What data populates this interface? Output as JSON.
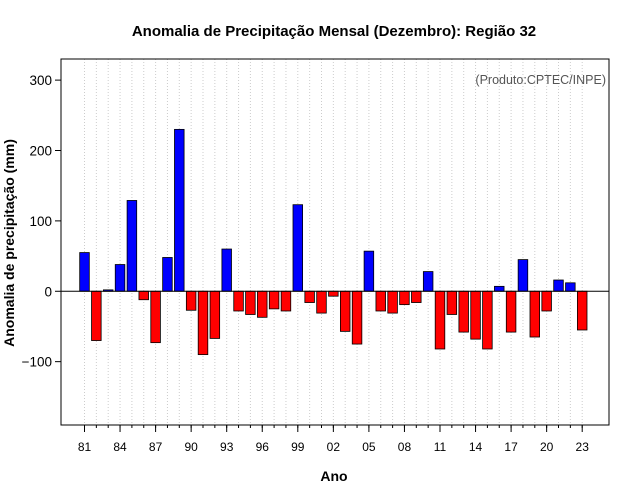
{
  "chart_data": {
    "type": "bar",
    "title": "Anomalia de Precipitação Mensal (Dezembro): Região 32",
    "xlabel": "Ano",
    "ylabel": "Anomalia de precipitação (mm)",
    "credit": "(Produto:CPTEC/INPE)",
    "years": [
      1981,
      1982,
      1983,
      1984,
      1985,
      1986,
      1987,
      1988,
      1989,
      1990,
      1991,
      1992,
      1993,
      1994,
      1995,
      1996,
      1997,
      1998,
      1999,
      2000,
      2001,
      2002,
      2003,
      2004,
      2005,
      2006,
      2007,
      2008,
      2009,
      2010,
      2011,
      2012,
      2013,
      2014,
      2015,
      2016,
      2017,
      2018,
      2019,
      2020,
      2021,
      2022,
      2023
    ],
    "values": [
      55,
      -70,
      2,
      38,
      129,
      -12,
      -73,
      48,
      230,
      -27,
      -90,
      -67,
      60,
      -28,
      -33,
      -37,
      -25,
      -28,
      123,
      -16,
      -31,
      -7,
      -57,
      -75,
      57,
      -28,
      -31,
      -19,
      -16,
      28,
      -82,
      -33,
      -58,
      -68,
      -82,
      7,
      -58,
      45,
      -65,
      -28,
      16,
      12,
      -55
    ],
    "positive_color": "#0000ff",
    "negative_color": "#ff0000",
    "ylim": [
      -190,
      330
    ],
    "y_ticks": [
      -100,
      0,
      100,
      200,
      300
    ],
    "y_tick_labels": [
      "−100",
      "0",
      "100",
      "200",
      "300"
    ],
    "x_tick_years": [
      1981,
      1984,
      1987,
      1990,
      1993,
      1996,
      1999,
      2002,
      2005,
      2008,
      2011,
      2014,
      2017,
      2020,
      2023
    ],
    "x_tick_labels": [
      "81",
      "84",
      "87",
      "90",
      "93",
      "96",
      "99",
      "02",
      "05",
      "08",
      "11",
      "14",
      "17",
      "20",
      "23"
    ],
    "x_minor_ticks_every_year": true,
    "grid": "vertical-dotted",
    "zero_line": true
  }
}
